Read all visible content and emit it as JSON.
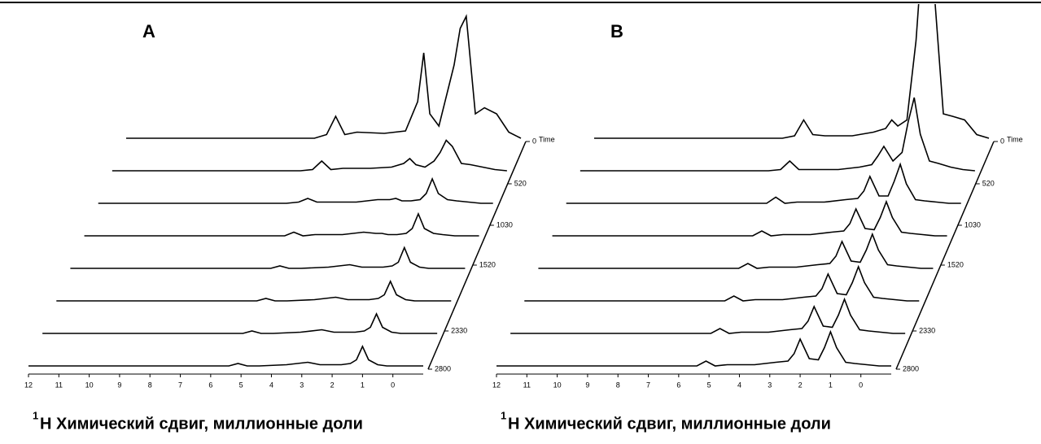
{
  "chart_data": [
    {
      "type": "waterfall",
      "title": "A",
      "xlabel_sup": "1",
      "xlabel": "H Химический сдвиг, миллионные доли",
      "zlabel": "Time",
      "xlim": [
        12,
        -1
      ],
      "xticks": [
        12,
        11,
        10,
        9,
        8,
        7,
        6,
        5,
        4,
        3,
        2,
        1,
        0
      ],
      "zlim": [
        0,
        2800
      ],
      "zticks": [
        0,
        520,
        1030,
        1520,
        2330,
        2800
      ],
      "ylim": [
        0,
        10
      ],
      "color": "#000000",
      "x": [
        12,
        5.8,
        5.4,
        5.1,
        4.8,
        4.4,
        3.5,
        2.8,
        2.4,
        2.2,
        2.0,
        1.7,
        1.4,
        1.2,
        1.0,
        0.8,
        0.5,
        0.2,
        -0.2,
        -0.6,
        -1
      ],
      "series": [
        {
          "z": 0,
          "values": [
            0,
            0,
            0.3,
            1.8,
            0.3,
            0.5,
            0.4,
            0.6,
            3,
            7,
            2,
            1,
            4,
            6,
            9,
            10,
            2,
            2.5,
            2,
            0.5,
            0
          ]
        },
        {
          "z": 400,
          "values": [
            0,
            0,
            0.1,
            0.8,
            0.1,
            0.2,
            0.2,
            0.3,
            0.6,
            1.0,
            0.5,
            0.3,
            0.8,
            1.5,
            2.5,
            2.0,
            0.6,
            0.5,
            0.3,
            0.1,
            0
          ]
        },
        {
          "z": 800,
          "values": [
            0,
            0,
            0.1,
            0.4,
            0.1,
            0.1,
            0.1,
            0.3,
            0.3,
            0.4,
            0.2,
            0.2,
            0.3,
            0.8,
            2.0,
            0.8,
            0.3,
            0.2,
            0.1,
            0,
            0
          ]
        },
        {
          "z": 1200,
          "values": [
            0,
            0,
            0,
            0.3,
            0,
            0.1,
            0.1,
            0.3,
            0.2,
            0.2,
            0.1,
            0.1,
            0.2,
            0.6,
            1.8,
            0.6,
            0.2,
            0.1,
            0,
            0,
            0
          ]
        },
        {
          "z": 1600,
          "values": [
            0,
            0,
            0,
            0.2,
            0,
            0,
            0.1,
            0.3,
            0.1,
            0.1,
            0.1,
            0.1,
            0.2,
            0.5,
            1.7,
            0.5,
            0.1,
            0,
            0,
            0,
            0
          ]
        },
        {
          "z": 2000,
          "values": [
            0,
            0,
            0,
            0.2,
            0,
            0,
            0.1,
            0.3,
            0.1,
            0.1,
            0.1,
            0.1,
            0.2,
            0.5,
            1.6,
            0.5,
            0.1,
            0,
            0,
            0,
            0
          ]
        },
        {
          "z": 2400,
          "values": [
            0,
            0,
            0,
            0.2,
            0,
            0,
            0.1,
            0.3,
            0.1,
            0.1,
            0.1,
            0.1,
            0.2,
            0.5,
            1.6,
            0.5,
            0.1,
            0,
            0,
            0,
            0
          ]
        },
        {
          "z": 2800,
          "values": [
            0,
            0,
            0,
            0.2,
            0,
            0,
            0.1,
            0.3,
            0.1,
            0.1,
            0.1,
            0.1,
            0.2,
            0.5,
            1.6,
            0.5,
            0.1,
            0,
            0,
            0,
            0
          ]
        }
      ]
    },
    {
      "type": "waterfall",
      "title": "B",
      "xlabel_sup": "1",
      "xlabel": "H Химический сдвиг, миллионные доли",
      "zlabel": "Time",
      "xlim": [
        12,
        -1
      ],
      "xticks": [
        12,
        11,
        10,
        9,
        8,
        7,
        6,
        5,
        4,
        3,
        2,
        1,
        0
      ],
      "zlim": [
        0,
        2800
      ],
      "zticks": [
        0,
        520,
        1030,
        1520,
        2330,
        2800
      ],
      "ylim": [
        0,
        10
      ],
      "color": "#000000",
      "x": [
        12,
        5.8,
        5.4,
        5.1,
        4.8,
        4.4,
        3.5,
        2.8,
        2.4,
        2.2,
        2.0,
        1.7,
        1.4,
        1.2,
        1.0,
        0.8,
        0.5,
        0.2,
        -0.2,
        -0.6,
        -1
      ],
      "series": [
        {
          "z": 0,
          "values": [
            0,
            0,
            0.2,
            1.5,
            0.3,
            0.2,
            0.2,
            0.5,
            0.8,
            1.5,
            1.0,
            1.5,
            8,
            15,
            15,
            12,
            2,
            1.8,
            1.5,
            0.3,
            0
          ]
        },
        {
          "z": 400,
          "values": [
            0,
            0,
            0.1,
            0.8,
            0.1,
            0.1,
            0.1,
            0.3,
            0.5,
            1.2,
            2.0,
            0.8,
            1.5,
            4,
            6,
            3,
            0.8,
            0.6,
            0.3,
            0.1,
            0
          ]
        },
        {
          "z": 800,
          "values": [
            0,
            0,
            0,
            0.5,
            0,
            0.1,
            0.1,
            0.3,
            0.4,
            1.0,
            2.2,
            0.6,
            0.6,
            1.8,
            3.2,
            1.6,
            0.3,
            0.2,
            0.1,
            0,
            0
          ]
        },
        {
          "z": 1200,
          "values": [
            0,
            0,
            0,
            0.4,
            0,
            0.1,
            0.1,
            0.3,
            0.4,
            1.0,
            2.2,
            0.6,
            0.5,
            1.5,
            2.8,
            1.5,
            0.3,
            0.2,
            0.1,
            0,
            0
          ]
        },
        {
          "z": 1600,
          "values": [
            0,
            0,
            0,
            0.4,
            0,
            0.1,
            0.1,
            0.3,
            0.4,
            1.0,
            2.2,
            0.6,
            0.5,
            1.5,
            2.8,
            1.5,
            0.3,
            0.2,
            0.1,
            0,
            0
          ]
        },
        {
          "z": 2000,
          "values": [
            0,
            0,
            0,
            0.4,
            0,
            0.1,
            0.1,
            0.3,
            0.4,
            1.0,
            2.2,
            0.6,
            0.5,
            1.5,
            2.8,
            1.5,
            0.3,
            0.2,
            0.1,
            0,
            0
          ]
        },
        {
          "z": 2400,
          "values": [
            0,
            0,
            0,
            0.4,
            0,
            0.1,
            0.1,
            0.3,
            0.4,
            1.0,
            2.2,
            0.6,
            0.5,
            1.5,
            2.8,
            1.5,
            0.3,
            0.2,
            0.1,
            0,
            0
          ]
        },
        {
          "z": 2800,
          "values": [
            0,
            0,
            0,
            0.4,
            0,
            0.1,
            0.1,
            0.3,
            0.4,
            1.0,
            2.2,
            0.6,
            0.5,
            1.5,
            2.8,
            1.5,
            0.3,
            0.2,
            0.1,
            0,
            0
          ]
        }
      ]
    }
  ]
}
